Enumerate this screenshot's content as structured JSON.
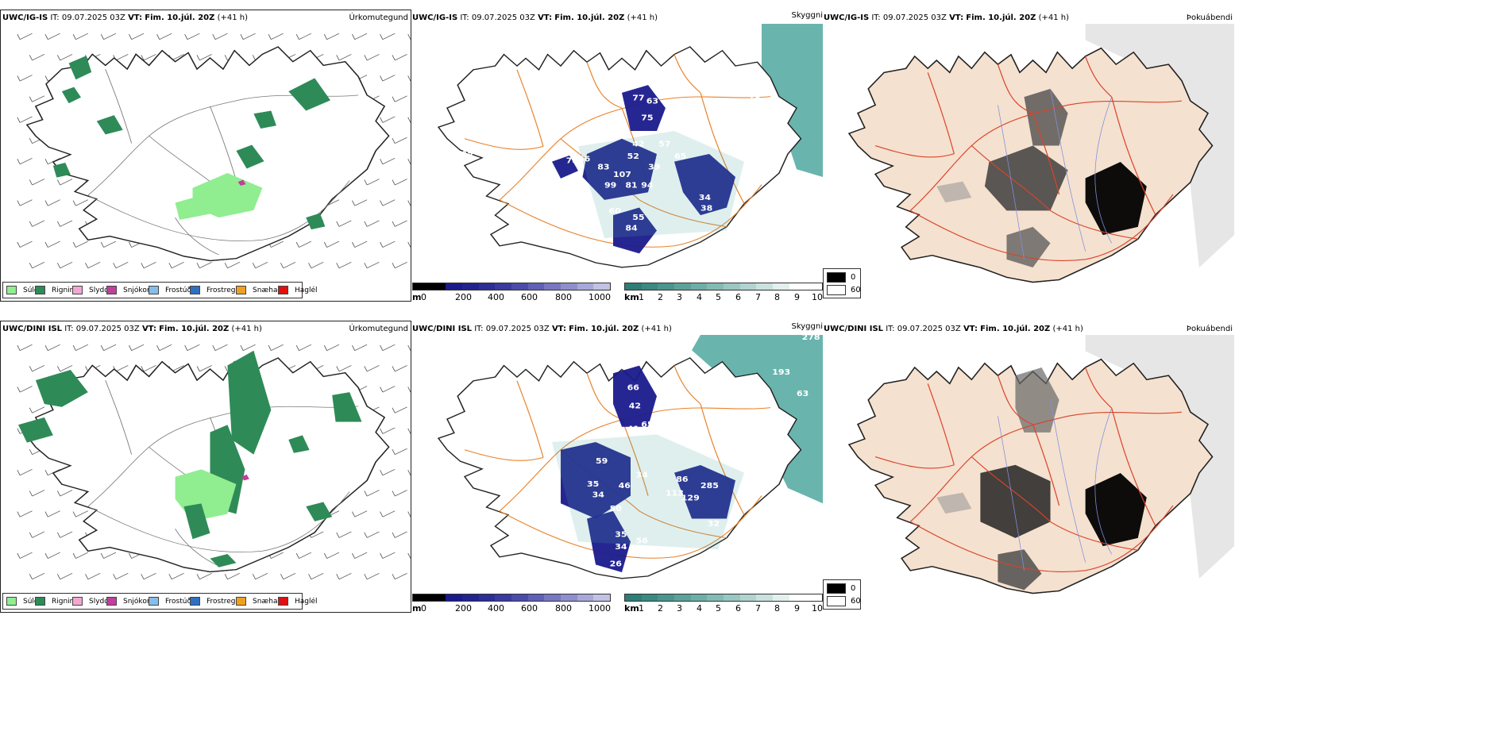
{
  "panels": [
    {
      "model": "UWC/IG-IS",
      "it_label": "IT:",
      "it_value": "09.07.2025 03Z",
      "vt_label": "VT:",
      "vt_value": "Fim. 10.júl. 20Z",
      "lead": "(+41 h)",
      "products": [
        "Úrkomutegund",
        "Skyggni",
        "Þokuábendi"
      ],
      "ceiling_labels": [
        "77",
        "63",
        "75",
        "42",
        "57",
        "52",
        "65",
        "78",
        "56",
        "83",
        "39",
        "107",
        "99",
        "81",
        "94",
        "34",
        "38",
        "60",
        "55",
        "84",
        "18",
        "49"
      ]
    },
    {
      "model": "UWC/DINI ISL",
      "it_label": "IT:",
      "it_value": "09.07.2025 03Z",
      "vt_label": "VT:",
      "vt_value": "Fim. 10.júl. 20Z",
      "lead": "(+41 h)",
      "products": [
        "Úrkomutegund",
        "Skyggni",
        "Þokuábendi"
      ],
      "ceiling_labels": [
        "278",
        "193",
        "63",
        "42",
        "66",
        "65",
        "41",
        "59",
        "35",
        "34",
        "46",
        "34",
        "50",
        "86",
        "113",
        "129",
        "285",
        "32",
        "35",
        "56",
        "34",
        "26",
        "31",
        "40"
      ]
    }
  ],
  "precip_legend": [
    {
      "label": "Súld",
      "color": "#90ee90"
    },
    {
      "label": "Rigning",
      "color": "#2e8b57"
    },
    {
      "label": "Slydda",
      "color": "#f4a6d0"
    },
    {
      "label": "Snjókoma",
      "color": "#c0409c"
    },
    {
      "label": "Frostúði",
      "color": "#87bde8"
    },
    {
      "label": "Frostregn",
      "color": "#2f6fbf"
    },
    {
      "label": "Snæhagl",
      "color": "#f0a020"
    },
    {
      "label": "Haglél",
      "color": "#e01010"
    }
  ],
  "ceiling_bar": {
    "unit": "m",
    "ticks": [
      "0",
      "200",
      "400",
      "600",
      "800",
      "1000"
    ]
  },
  "vis_bar": {
    "unit": "km",
    "ticks": [
      "1",
      "2",
      "3",
      "4",
      "5",
      "6",
      "7",
      "8",
      "9",
      "10"
    ]
  },
  "fog_legend": [
    {
      "label": "0",
      "color": "#000000"
    },
    {
      "label": "60",
      "color": "#ffffff"
    }
  ],
  "colors": {
    "map_outline": "#222222",
    "road_orange": "#e8822a",
    "road_red": "#d9432b",
    "land_fog": "#f5e1cf",
    "sea_vis": "#4fa8a0",
    "ceiling_blue": "#1a1a8c",
    "river_blue": "#8090e0"
  }
}
